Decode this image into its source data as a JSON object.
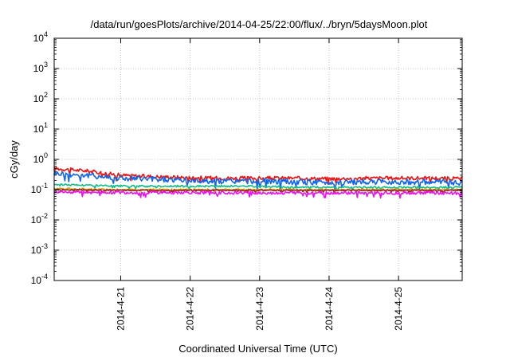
{
  "chart_data": {
    "type": "line",
    "title": "/data/run/goesPlots/archive/2014-04-25/22:00/flux/../bryn/5daysMoon.plot",
    "xlabel": "Coordinated Universal Time (UTC)",
    "ylabel": "cGy/day",
    "y_scale": "log",
    "ylim": [
      0.0001,
      10000
    ],
    "y_ticks": [
      {
        "base": "10",
        "exp": "4",
        "value": 10000
      },
      {
        "base": "10",
        "exp": "3",
        "value": 1000
      },
      {
        "base": "10",
        "exp": "2",
        "value": 100
      },
      {
        "base": "10",
        "exp": "1",
        "value": 10
      },
      {
        "base": "10",
        "exp": "0",
        "value": 1
      },
      {
        "base": "10",
        "exp": "-1",
        "value": 0.1
      },
      {
        "base": "10",
        "exp": "-2",
        "value": 0.01
      },
      {
        "base": "10",
        "exp": "-3",
        "value": 0.001
      },
      {
        "base": "10",
        "exp": "-4",
        "value": 0.0001
      }
    ],
    "x_ticks": [
      "2014-4-21",
      "2014-4-22",
      "2014-4-23",
      "2014-4-24",
      "2014-4-25"
    ],
    "x_tick_values": [
      "2014-04-21T00:00",
      "2014-04-22T00:00",
      "2014-04-23T00:00",
      "2014-04-24T00:00",
      "2014-04-25T00:00"
    ],
    "xlim": [
      "2014-04-20T01:00",
      "2014-04-25T22:00"
    ],
    "grid": true,
    "series": [
      {
        "color": "#ee1111",
        "x": [
          "2014-04-20T01:00",
          "2014-04-20T12:00",
          "2014-04-21T00:00",
          "2014-04-21T12:00",
          "2014-04-22T00:00",
          "2014-04-22T12:00",
          "2014-04-23T00:00",
          "2014-04-23T12:00",
          "2014-04-24T00:00",
          "2014-04-24T12:00",
          "2014-04-25T00:00",
          "2014-04-25T12:00",
          "2014-04-25T22:00"
        ],
        "values": [
          0.5,
          0.42,
          0.3,
          0.27,
          0.25,
          0.24,
          0.24,
          0.24,
          0.23,
          0.24,
          0.24,
          0.24,
          0.23
        ]
      },
      {
        "color": "#1166ee",
        "x": [
          "2014-04-20T01:00",
          "2014-04-20T12:00",
          "2014-04-21T00:00",
          "2014-04-21T12:00",
          "2014-04-22T00:00",
          "2014-04-22T12:00",
          "2014-04-23T00:00",
          "2014-04-23T12:00",
          "2014-04-24T00:00",
          "2014-04-24T12:00",
          "2014-04-25T00:00",
          "2014-04-25T12:00",
          "2014-04-25T22:00"
        ],
        "values": [
          0.35,
          0.3,
          0.24,
          0.22,
          0.2,
          0.19,
          0.19,
          0.18,
          0.17,
          0.18,
          0.18,
          0.18,
          0.17
        ]
      },
      {
        "color": "#11bb88",
        "x": [
          "2014-04-20T01:00",
          "2014-04-20T12:00",
          "2014-04-21T00:00",
          "2014-04-21T12:00",
          "2014-04-22T00:00",
          "2014-04-22T12:00",
          "2014-04-23T00:00",
          "2014-04-23T12:00",
          "2014-04-24T00:00",
          "2014-04-24T12:00",
          "2014-04-25T00:00",
          "2014-04-25T12:00",
          "2014-04-25T22:00"
        ],
        "values": [
          0.15,
          0.14,
          0.13,
          0.13,
          0.13,
          0.13,
          0.13,
          0.12,
          0.12,
          0.12,
          0.12,
          0.12,
          0.12
        ]
      },
      {
        "color": "#cc9900",
        "x": [
          "2014-04-20T01:00",
          "2014-04-20T12:00",
          "2014-04-21T00:00",
          "2014-04-21T12:00",
          "2014-04-22T00:00",
          "2014-04-22T12:00",
          "2014-04-23T00:00",
          "2014-04-23T12:00",
          "2014-04-24T00:00",
          "2014-04-24T12:00",
          "2014-04-25T00:00",
          "2014-04-25T12:00",
          "2014-04-25T22:00"
        ],
        "values": [
          0.11,
          0.105,
          0.1,
          0.1,
          0.1,
          0.1,
          0.1,
          0.1,
          0.1,
          0.1,
          0.1,
          0.1,
          0.1
        ]
      },
      {
        "color": "#992222",
        "x": [
          "2014-04-20T01:00",
          "2014-04-20T12:00",
          "2014-04-21T00:00",
          "2014-04-21T12:00",
          "2014-04-22T00:00",
          "2014-04-22T12:00",
          "2014-04-23T00:00",
          "2014-04-23T12:00",
          "2014-04-24T00:00",
          "2014-04-24T12:00",
          "2014-04-25T00:00",
          "2014-04-25T12:00",
          "2014-04-25T22:00"
        ],
        "values": [
          0.1,
          0.098,
          0.095,
          0.095,
          0.095,
          0.095,
          0.095,
          0.095,
          0.095,
          0.095,
          0.095,
          0.095,
          0.095
        ]
      },
      {
        "color": "#ee11ee",
        "x": [
          "2014-04-20T01:00",
          "2014-04-20T12:00",
          "2014-04-21T00:00",
          "2014-04-21T12:00",
          "2014-04-22T00:00",
          "2014-04-22T12:00",
          "2014-04-23T00:00",
          "2014-04-23T12:00",
          "2014-04-24T00:00",
          "2014-04-24T12:00",
          "2014-04-25T00:00",
          "2014-04-25T12:00",
          "2014-04-25T22:00"
        ],
        "values": [
          0.085,
          0.083,
          0.08,
          0.08,
          0.08,
          0.079,
          0.078,
          0.078,
          0.077,
          0.078,
          0.078,
          0.078,
          0.076
        ]
      }
    ]
  }
}
